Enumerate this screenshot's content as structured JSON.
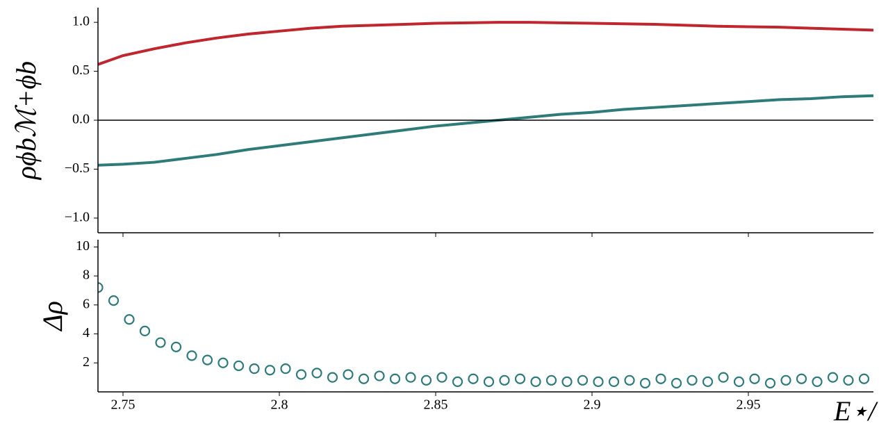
{
  "chart_data": [
    {
      "type": "line",
      "ylabel": "ρϕbℳ+ϕb",
      "xlim": [
        2.742,
        2.99
      ],
      "ylim": [
        -1.15,
        1.15
      ],
      "xticks": [
        2.75,
        2.8,
        2.85,
        2.9,
        2.95
      ],
      "yticks": [
        {
          "value": -1.0,
          "label": "−1.0"
        },
        {
          "value": -0.5,
          "label": "−0.5"
        },
        {
          "value": 0.0,
          "label": "0.0"
        },
        {
          "value": 0.5,
          "label": "0.5"
        },
        {
          "value": 1.0,
          "label": "1.0"
        }
      ],
      "hline": 0,
      "x": [
        2.742,
        2.75,
        2.76,
        2.77,
        2.78,
        2.79,
        2.8,
        2.81,
        2.82,
        2.83,
        2.84,
        2.85,
        2.86,
        2.87,
        2.88,
        2.89,
        2.9,
        2.91,
        2.92,
        2.93,
        2.94,
        2.95,
        2.96,
        2.97,
        2.98,
        2.99
      ],
      "series": [
        {
          "color": "#c0262d",
          "values": [
            0.57,
            0.66,
            0.73,
            0.79,
            0.84,
            0.88,
            0.91,
            0.94,
            0.96,
            0.97,
            0.98,
            0.99,
            0.995,
            1.0,
            1.0,
            0.995,
            0.99,
            0.985,
            0.98,
            0.97,
            0.96,
            0.955,
            0.95,
            0.94,
            0.93,
            0.92
          ]
        },
        {
          "color": "#2e7b7a",
          "values": [
            -0.46,
            -0.45,
            -0.43,
            -0.39,
            -0.35,
            -0.3,
            -0.26,
            -0.22,
            -0.18,
            -0.14,
            -0.1,
            -0.06,
            -0.03,
            0.0,
            0.03,
            0.06,
            0.08,
            0.11,
            0.13,
            0.15,
            0.17,
            0.19,
            0.21,
            0.22,
            0.24,
            0.25
          ]
        }
      ]
    },
    {
      "type": "scatter",
      "ylabel": "Δρ",
      "xlabel": "E⋆/",
      "xlim": [
        2.742,
        2.99
      ],
      "ylim": [
        0,
        10.5
      ],
      "xticks": [
        2.75,
        2.8,
        2.85,
        2.9,
        2.95
      ],
      "yticks": [
        2,
        4,
        6,
        8,
        10
      ],
      "color": "#2e7b7a",
      "x": [
        2.742,
        2.747,
        2.752,
        2.757,
        2.762,
        2.767,
        2.772,
        2.777,
        2.782,
        2.787,
        2.792,
        2.797,
        2.802,
        2.807,
        2.812,
        2.817,
        2.822,
        2.827,
        2.832,
        2.837,
        2.842,
        2.847,
        2.852,
        2.857,
        2.862,
        2.867,
        2.872,
        2.877,
        2.882,
        2.887,
        2.892,
        2.897,
        2.902,
        2.907,
        2.912,
        2.917,
        2.922,
        2.927,
        2.932,
        2.937,
        2.942,
        2.947,
        2.952,
        2.957,
        2.962,
        2.967,
        2.972,
        2.977,
        2.982,
        2.987
      ],
      "values": [
        7.2,
        6.3,
        5.0,
        4.2,
        3.4,
        3.1,
        2.5,
        2.2,
        2.0,
        1.8,
        1.6,
        1.5,
        1.6,
        1.2,
        1.3,
        1.0,
        1.2,
        0.9,
        1.1,
        0.9,
        1.0,
        0.8,
        1.0,
        0.7,
        0.9,
        0.7,
        0.8,
        0.9,
        0.7,
        0.8,
        0.7,
        0.8,
        0.7,
        0.7,
        0.8,
        0.6,
        0.9,
        0.6,
        0.8,
        0.7,
        1.0,
        0.7,
        0.9,
        0.6,
        0.8,
        0.9,
        0.7,
        1.0,
        0.8,
        0.9
      ]
    }
  ]
}
